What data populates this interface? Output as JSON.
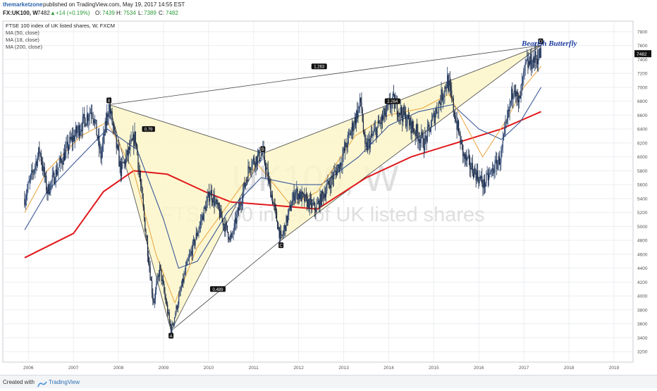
{
  "header": {
    "author": "themarketzone",
    "published": "published on TradingView.com, May 19, 2017 14:55 EST",
    "symbol": "FX:UK100, W",
    "last": "7482",
    "change": "+14 (+0.19%)",
    "o_label": "O:",
    "o_val": "7439",
    "h_label": "H:",
    "h_val": "7534",
    "l_label": "L:",
    "l_val": "7389",
    "c_label": "C:",
    "c_val": "7482"
  },
  "legend": {
    "title": "FTSE 100 index of UK listed shares, W, FXCM",
    "ma50": "MA (50, close)",
    "ma18": "MA (18, close)",
    "ma200": "MA (200, close)"
  },
  "watermark": {
    "symbol": "UK100, W",
    "name": "FTSE 100 index of UK listed shares"
  },
  "pattern_title": "Bearish Butterfly",
  "footer": {
    "created_with": "Created with",
    "brand": "TradingView"
  },
  "colors": {
    "ma200": "#e0181b",
    "ma50": "#3d5a99",
    "ma18": "#e8a23a",
    "candle_up": "#2b4572",
    "candle_down": "#16233d",
    "pattern_fill": "#fbf6c9",
    "pattern_title": "#1f3fa0",
    "price_label_bg": "#111111"
  },
  "chart_data": {
    "type": "candlestick",
    "symbol": "FX:UK100",
    "timeframe": "W",
    "x_axis_labels": [
      "2006",
      "2007",
      "2008",
      "2009",
      "2010",
      "2011",
      "2012",
      "2013",
      "2014",
      "2015",
      "2016",
      "2017",
      "2018",
      "2019"
    ],
    "y_ticks": [
      3200,
      3400,
      3600,
      3800,
      4000,
      4200,
      4400,
      4600,
      4800,
      5000,
      5200,
      5400,
      5600,
      5800,
      6000,
      6200,
      6400,
      6600,
      6800,
      7000,
      7200,
      7400,
      7600,
      7800
    ],
    "y_range": [
      3050,
      7950
    ],
    "last_price_label": "7482",
    "price_path": [
      {
        "date": "2005-12-01",
        "price": 5400
      },
      {
        "date": "2006-04-01",
        "price": 6100
      },
      {
        "date": "2006-06-01",
        "price": 5500
      },
      {
        "date": "2006-12-01",
        "price": 6200
      },
      {
        "date": "2007-06-01",
        "price": 6700
      },
      {
        "date": "2007-08-10",
        "price": 6000
      },
      {
        "date": "2007-10-15",
        "price": 6750
      },
      {
        "date": "2008-01-20",
        "price": 5800
      },
      {
        "date": "2008-05-15",
        "price": 6300
      },
      {
        "date": "2008-10-10",
        "price": 3900
      },
      {
        "date": "2008-12-01",
        "price": 4400
      },
      {
        "date": "2009-03-01",
        "price": 3500
      },
      {
        "date": "2009-07-01",
        "price": 4400
      },
      {
        "date": "2010-01-15",
        "price": 5500
      },
      {
        "date": "2010-07-01",
        "price": 4800
      },
      {
        "date": "2010-12-01",
        "price": 5900
      },
      {
        "date": "2011-03-15",
        "price": 6050
      },
      {
        "date": "2011-08-10",
        "price": 4800
      },
      {
        "date": "2011-12-01",
        "price": 5500
      },
      {
        "date": "2012-05-15",
        "price": 5250
      },
      {
        "date": "2012-12-01",
        "price": 5900
      },
      {
        "date": "2013-05-20",
        "price": 6800
      },
      {
        "date": "2013-06-20",
        "price": 6100
      },
      {
        "date": "2014-02-01",
        "price": 6800
      },
      {
        "date": "2014-10-15",
        "price": 6200
      },
      {
        "date": "2015-04-20",
        "price": 7100
      },
      {
        "date": "2015-09-01",
        "price": 6000
      },
      {
        "date": "2016-02-10",
        "price": 5600
      },
      {
        "date": "2016-06-27",
        "price": 6000
      },
      {
        "date": "2016-10-15",
        "price": 7100
      },
      {
        "date": "2016-11-15",
        "price": 6700
      },
      {
        "date": "2017-01-15",
        "price": 7300
      },
      {
        "date": "2017-05-19",
        "price": 7482
      }
    ],
    "moving_averages": [
      {
        "name": "MA (200, close)",
        "points": [
          {
            "date": "2005-12-01",
            "price": 4550
          },
          {
            "date": "2007-01-01",
            "price": 4900
          },
          {
            "date": "2007-09-01",
            "price": 5500
          },
          {
            "date": "2008-05-01",
            "price": 5800
          },
          {
            "date": "2009-02-01",
            "price": 5750
          },
          {
            "date": "2009-12-01",
            "price": 5500
          },
          {
            "date": "2010-07-01",
            "price": 5350
          },
          {
            "date": "2011-07-01",
            "price": 5300
          },
          {
            "date": "2012-06-01",
            "price": 5250
          },
          {
            "date": "2013-07-01",
            "price": 5700
          },
          {
            "date": "2014-07-01",
            "price": 6000
          },
          {
            "date": "2015-07-01",
            "price": 6200
          },
          {
            "date": "2016-07-01",
            "price": 6400
          },
          {
            "date": "2017-05-19",
            "price": 6650
          }
        ]
      },
      {
        "name": "MA (50, close)",
        "points": [
          {
            "date": "2005-12-01",
            "price": 4950
          },
          {
            "date": "2006-06-01",
            "price": 5500
          },
          {
            "date": "2007-01-01",
            "price": 5900
          },
          {
            "date": "2007-10-01",
            "price": 6400
          },
          {
            "date": "2008-06-01",
            "price": 6100
          },
          {
            "date": "2009-01-01",
            "price": 5100
          },
          {
            "date": "2009-05-01",
            "price": 4400
          },
          {
            "date": "2009-10-01",
            "price": 4500
          },
          {
            "date": "2010-06-01",
            "price": 5200
          },
          {
            "date": "2011-03-01",
            "price": 5700
          },
          {
            "date": "2011-12-01",
            "price": 5600
          },
          {
            "date": "2012-07-01",
            "price": 5600
          },
          {
            "date": "2013-05-01",
            "price": 6000
          },
          {
            "date": "2014-01-01",
            "price": 6450
          },
          {
            "date": "2014-09-01",
            "price": 6650
          },
          {
            "date": "2015-06-01",
            "price": 6750
          },
          {
            "date": "2016-01-01",
            "price": 6400
          },
          {
            "date": "2016-07-01",
            "price": 6250
          },
          {
            "date": "2016-12-01",
            "price": 6500
          },
          {
            "date": "2017-05-19",
            "price": 7000
          }
        ]
      },
      {
        "name": "MA (18, close)",
        "points": [
          {
            "date": "2005-12-01",
            "price": 5200
          },
          {
            "date": "2006-06-01",
            "price": 5800
          },
          {
            "date": "2007-03-01",
            "price": 6300
          },
          {
            "date": "2007-10-01",
            "price": 6500
          },
          {
            "date": "2008-05-01",
            "price": 5800
          },
          {
            "date": "2008-11-01",
            "price": 4600
          },
          {
            "date": "2009-04-01",
            "price": 3900
          },
          {
            "date": "2009-10-01",
            "price": 4700
          },
          {
            "date": "2010-06-01",
            "price": 5300
          },
          {
            "date": "2011-02-01",
            "price": 5900
          },
          {
            "date": "2011-11-01",
            "price": 5300
          },
          {
            "date": "2012-06-01",
            "price": 5500
          },
          {
            "date": "2013-04-01",
            "price": 6300
          },
          {
            "date": "2014-01-01",
            "price": 6600
          },
          {
            "date": "2014-10-01",
            "price": 6700
          },
          {
            "date": "2015-05-01",
            "price": 6900
          },
          {
            "date": "2016-02-01",
            "price": 6000
          },
          {
            "date": "2016-08-01",
            "price": 6500
          },
          {
            "date": "2017-01-01",
            "price": 7000
          },
          {
            "date": "2017-05-19",
            "price": 7300
          }
        ]
      }
    ],
    "pattern": {
      "name": "Bearish Butterfly",
      "points": [
        {
          "label": "X",
          "date": "2007-10-15",
          "price": 6750
        },
        {
          "label": "A",
          "date": "2009-03-01",
          "price": 3500
        },
        {
          "label": "B",
          "date": "2011-03-15",
          "price": 6050
        },
        {
          "label": "C",
          "date": "2011-08-10",
          "price": 4800
        },
        {
          "label": "D",
          "date": "2017-05-15",
          "price": 7600
        }
      ],
      "ratios": [
        {
          "text": "0.79",
          "between": "X-B",
          "date": "2008-09-01",
          "price": 6400
        },
        {
          "text": "0.489",
          "between": "A-C",
          "date": "2010-03-15",
          "price": 4100
        },
        {
          "text": "1.263",
          "between": "X-D",
          "date": "2012-06-15",
          "price": 7300
        },
        {
          "text": "2.264",
          "between": "B-D",
          "date": "2014-02-01",
          "price": 6800
        }
      ]
    }
  }
}
